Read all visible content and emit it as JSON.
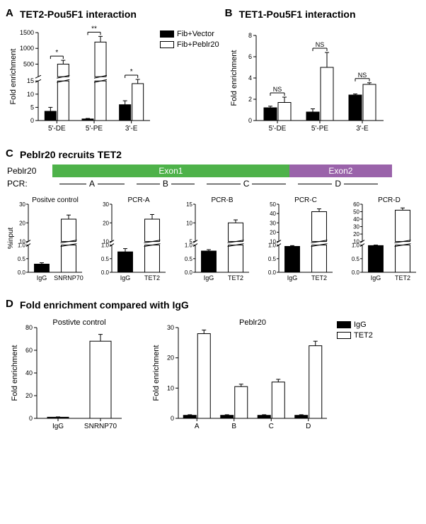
{
  "colors": {
    "bar_black": "#000000",
    "bar_white": "#ffffff",
    "bar_stroke": "#000000",
    "axis": "#000000",
    "exon1": "#4eb24a",
    "exon2": "#9a63aa",
    "bg": "#ffffff"
  },
  "typography": {
    "panel_letter_size": 15,
    "panel_title_size": 14,
    "axis_label_size": 11,
    "tick_label_size": 10
  },
  "legends": {
    "AB": [
      {
        "label": "Fib+Vector",
        "fill": "#000000"
      },
      {
        "label": "Fib+Peblr20",
        "fill": "#ffffff"
      }
    ],
    "D": [
      {
        "label": "IgG",
        "fill": "#000000"
      },
      {
        "label": "TET2",
        "fill": "#ffffff"
      }
    ]
  },
  "panelA": {
    "letter": "A",
    "title": "TET2-Pou5F1 interaction",
    "ylabel": "Fold enrichment",
    "categories": [
      "5'-DE",
      "5'-PE",
      "3'-E"
    ],
    "series": [
      {
        "name": "Fib+Vector",
        "fill": "#000000",
        "values": [
          3.5,
          0.6,
          6
        ],
        "errors": [
          1.5,
          0.2,
          1.5
        ]
      },
      {
        "name": "Fib+Peblr20",
        "fill": "#ffffff",
        "values": [
          500,
          1200,
          14
        ],
        "errors": [
          120,
          180,
          1.5
        ]
      }
    ],
    "sig": [
      "*",
      "**",
      "*"
    ],
    "y_lower": {
      "lim": [
        0,
        15
      ],
      "ticks": [
        0,
        5,
        10,
        15
      ]
    },
    "y_upper": {
      "lim": [
        100,
        1500
      ],
      "ticks": [
        500,
        1000,
        1500
      ]
    },
    "bar_width": 0.35
  },
  "panelB": {
    "letter": "B",
    "title": "TET1-Pou5F1 interaction",
    "ylabel": "Fold enrichment",
    "categories": [
      "5'-DE",
      "5'-PE",
      "3'-E"
    ],
    "series": [
      {
        "name": "Fib+Vector",
        "fill": "#000000",
        "values": [
          1.2,
          0.8,
          2.4
        ],
        "errors": [
          0.15,
          0.3,
          0.1
        ]
      },
      {
        "name": "Fib+Peblr20",
        "fill": "#ffffff",
        "values": [
          1.7,
          5.0,
          3.4
        ],
        "errors": [
          0.5,
          1.4,
          0.15
        ]
      }
    ],
    "sig": [
      "NS",
      "NS",
      "NS"
    ],
    "y": {
      "lim": [
        0,
        8
      ],
      "ticks": [
        0,
        2,
        4,
        6,
        8
      ]
    },
    "bar_width": 0.35
  },
  "panelC": {
    "letter": "C",
    "title": "Peblr20 recruits TET2",
    "exons": {
      "label": "Peblr20",
      "exon1": "Exon1",
      "exon2": "Exon2"
    },
    "pcr": {
      "label": "PCR:",
      "segments": [
        "A",
        "B",
        "C",
        "D"
      ]
    },
    "ylabel": "%input",
    "charts": [
      {
        "title": "Positve control",
        "categories": [
          "IgG",
          "SNRNP70"
        ],
        "values": [
          [
            0.3,
            22
          ]
        ],
        "errors": [
          [
            0.05,
            2.2
          ]
        ],
        "fills": [
          "#000000",
          "#ffffff"
        ],
        "y_lower": {
          "lim": [
            0,
            1
          ],
          "ticks": [
            0.0,
            0.5,
            1.0
          ]
        },
        "y_upper": {
          "lim": [
            10,
            30
          ],
          "ticks": [
            10,
            20,
            30
          ]
        }
      },
      {
        "title": "PCR-A",
        "categories": [
          "IgG",
          "TET2"
        ],
        "values": [
          [
            0.75,
            22
          ]
        ],
        "errors": [
          [
            0.12,
            2.5
          ]
        ],
        "fills": [
          "#000000",
          "#ffffff"
        ],
        "y_lower": {
          "lim": [
            0,
            1
          ],
          "ticks": [
            0.0,
            0.5,
            1.0
          ]
        },
        "y_upper": {
          "lim": [
            10,
            30
          ],
          "ticks": [
            10,
            20,
            30
          ]
        }
      },
      {
        "title": "PCR-B",
        "categories": [
          "IgG",
          "TET2"
        ],
        "values": [
          [
            0.78,
            10
          ]
        ],
        "errors": [
          [
            0.05,
            0.8
          ]
        ],
        "fills": [
          "#000000",
          "#ffffff"
        ],
        "y_lower": {
          "lim": [
            0,
            1
          ],
          "ticks": [
            0.0,
            0.5,
            1.0
          ]
        },
        "y_upper": {
          "lim": [
            5,
            15
          ],
          "ticks": [
            5,
            10,
            15
          ]
        }
      },
      {
        "title": "PCR-C",
        "categories": [
          "IgG",
          "TET2"
        ],
        "values": [
          [
            0.95,
            42
          ]
        ],
        "errors": [
          [
            0.03,
            3
          ]
        ],
        "fills": [
          "#000000",
          "#ffffff"
        ],
        "y_lower": {
          "lim": [
            0,
            1
          ],
          "ticks": [
            0.0,
            0.5,
            1.0
          ]
        },
        "y_upper": {
          "lim": [
            10,
            50
          ],
          "ticks": [
            10,
            20,
            30,
            40,
            50
          ]
        }
      },
      {
        "title": "PCR-D",
        "categories": [
          "IgG",
          "TET2"
        ],
        "values": [
          [
            0.98,
            52
          ]
        ],
        "errors": [
          [
            0.02,
            3
          ]
        ],
        "fills": [
          "#000000",
          "#ffffff"
        ],
        "y_lower": {
          "lim": [
            0,
            1
          ],
          "ticks": [
            0.0,
            0.5,
            1.0
          ]
        },
        "y_upper": {
          "lim": [
            10,
            60
          ],
          "ticks": [
            10,
            20,
            30,
            40,
            50,
            60
          ]
        }
      }
    ]
  },
  "panelD": {
    "letter": "D",
    "title": "Fold enrichment compared with IgG",
    "ylabel": "Fold enrichment",
    "chart1": {
      "title": "Postivte control",
      "categories": [
        "IgG",
        "SNRNP70"
      ],
      "values": [
        1,
        68
      ],
      "errors": [
        0.3,
        6
      ],
      "fills": [
        "#000000",
        "#ffffff"
      ],
      "y": {
        "lim": [
          0,
          80
        ],
        "ticks": [
          0,
          20,
          40,
          60,
          80
        ]
      }
    },
    "chart2": {
      "title": "Peblr20",
      "categories": [
        "A",
        "B",
        "C",
        "D"
      ],
      "series": [
        {
          "name": "IgG",
          "fill": "#000000",
          "values": [
            1,
            1,
            1,
            1
          ],
          "errors": [
            0.2,
            0.2,
            0.2,
            0.2
          ]
        },
        {
          "name": "TET2",
          "fill": "#ffffff",
          "values": [
            28,
            10.5,
            12,
            24
          ],
          "errors": [
            1.2,
            0.8,
            0.9,
            1.5
          ]
        }
      ],
      "y": {
        "lim": [
          0,
          30
        ],
        "ticks": [
          0,
          10,
          20,
          30
        ]
      }
    }
  }
}
